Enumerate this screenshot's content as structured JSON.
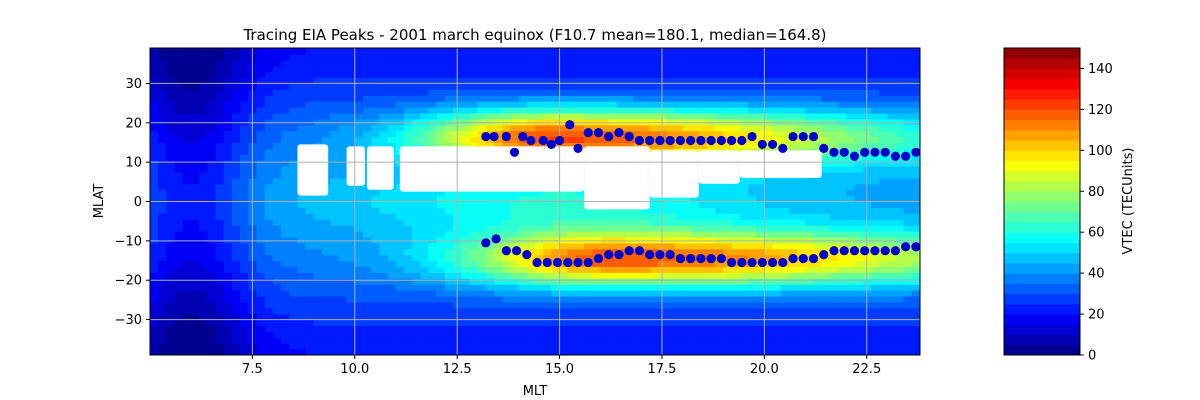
{
  "chart_data": {
    "type": "heatmap",
    "title": "Tracing EIA Peaks - 2001 march equinox (F10.7 mean=180.1, median=164.8)",
    "xlabel": "MLT",
    "ylabel": "MLAT",
    "xlim": [
      5.0,
      23.8
    ],
    "ylim": [
      -39,
      39
    ],
    "xticks": [
      7.5,
      10.0,
      12.5,
      15.0,
      17.5,
      20.0,
      22.5
    ],
    "xtick_labels": [
      "7.5",
      "10.0",
      "12.5",
      "15.0",
      "17.5",
      "20.0",
      "22.5"
    ],
    "yticks": [
      -30,
      -20,
      -10,
      0,
      10,
      20,
      30
    ],
    "ytick_labels": [
      "−30",
      "−20",
      "−10",
      "0",
      "10",
      "20",
      "30"
    ],
    "grid": true,
    "colorbar": {
      "label": "VTEC (TECUnits)",
      "colormap": "jet",
      "range": [
        0,
        150
      ],
      "ticks": [
        0,
        20,
        40,
        60,
        80,
        100,
        120,
        140
      ],
      "tick_labels": [
        "0",
        "20",
        "40",
        "60",
        "80",
        "100",
        "120",
        "140"
      ]
    },
    "peaks_series": [
      {
        "marker_color": "#0000cc",
        "points": [
          [
            13.2,
            16.5
          ],
          [
            13.4,
            16.5
          ],
          [
            13.7,
            16.5
          ],
          [
            13.9,
            12.5
          ],
          [
            14.1,
            16.5
          ],
          [
            14.3,
            15.5
          ],
          [
            14.6,
            15.5
          ],
          [
            14.8,
            14.5
          ],
          [
            15.0,
            15.5
          ],
          [
            15.25,
            19.5
          ],
          [
            15.45,
            13.5
          ],
          [
            15.7,
            17.5
          ],
          [
            15.95,
            17.5
          ],
          [
            16.2,
            16.5
          ],
          [
            16.45,
            17.5
          ],
          [
            16.7,
            16.5
          ],
          [
            16.95,
            15.5
          ],
          [
            17.2,
            15.5
          ],
          [
            17.45,
            15.5
          ],
          [
            17.7,
            15.5
          ],
          [
            17.95,
            15.5
          ],
          [
            18.2,
            15.5
          ],
          [
            18.45,
            15.5
          ],
          [
            18.7,
            15.5
          ],
          [
            18.95,
            15.5
          ],
          [
            19.2,
            15.5
          ],
          [
            19.45,
            15.5
          ],
          [
            19.7,
            16.5
          ],
          [
            19.95,
            14.5
          ],
          [
            20.2,
            14.5
          ],
          [
            20.45,
            13.5
          ],
          [
            20.7,
            16.5
          ],
          [
            20.95,
            16.5
          ],
          [
            21.2,
            16.5
          ],
          [
            21.45,
            13.5
          ],
          [
            21.7,
            12.5
          ],
          [
            21.95,
            12.5
          ],
          [
            22.2,
            11.5
          ],
          [
            22.45,
            12.5
          ],
          [
            22.7,
            12.5
          ],
          [
            22.95,
            12.5
          ],
          [
            23.2,
            11.5
          ],
          [
            23.45,
            11.5
          ],
          [
            23.7,
            12.5
          ],
          [
            23.95,
            12.5
          ]
        ]
      },
      {
        "marker_color": "#0000cc",
        "points": [
          [
            13.2,
            -10.5
          ],
          [
            13.45,
            -9.5
          ],
          [
            13.7,
            -12.5
          ],
          [
            13.95,
            -12.5
          ],
          [
            14.2,
            -13.5
          ],
          [
            14.45,
            -15.5
          ],
          [
            14.7,
            -15.5
          ],
          [
            14.95,
            -15.5
          ],
          [
            15.2,
            -15.5
          ],
          [
            15.45,
            -15.5
          ],
          [
            15.7,
            -15.5
          ],
          [
            15.95,
            -14.5
          ],
          [
            16.2,
            -13.5
          ],
          [
            16.45,
            -13.5
          ],
          [
            16.7,
            -12.5
          ],
          [
            16.95,
            -12.5
          ],
          [
            17.2,
            -13.5
          ],
          [
            17.45,
            -13.5
          ],
          [
            17.7,
            -13.5
          ],
          [
            17.95,
            -14.5
          ],
          [
            18.2,
            -14.5
          ],
          [
            18.45,
            -14.5
          ],
          [
            18.7,
            -14.5
          ],
          [
            18.95,
            -14.5
          ],
          [
            19.2,
            -15.5
          ],
          [
            19.45,
            -15.5
          ],
          [
            19.7,
            -15.5
          ],
          [
            19.95,
            -15.5
          ],
          [
            20.2,
            -15.5
          ],
          [
            20.45,
            -15.5
          ],
          [
            20.7,
            -14.5
          ],
          [
            20.95,
            -14.5
          ],
          [
            21.2,
            -14.5
          ],
          [
            21.45,
            -13.5
          ],
          [
            21.7,
            -12.5
          ],
          [
            21.95,
            -12.5
          ],
          [
            22.2,
            -12.5
          ],
          [
            22.45,
            -12.5
          ],
          [
            22.7,
            -12.5
          ],
          [
            22.95,
            -12.5
          ],
          [
            23.2,
            -12.5
          ],
          [
            23.45,
            -11.5
          ],
          [
            23.7,
            -11.5
          ],
          [
            23.95,
            -11.5
          ]
        ]
      }
    ],
    "field_model": {
      "description_units": "VTEC (TECUnits)",
      "base_level": 30,
      "crests": [
        {
          "mlat": 16.5,
          "mlt_peak": 14.8,
          "amplitude": 85,
          "mlt_width": 3.2,
          "lat_width": 7
        },
        {
          "mlat": -14.5,
          "mlt_peak": 16.3,
          "amplitude": 82,
          "mlt_width": 3.6,
          "lat_width": 7
        }
      ],
      "trough_mlt": 6.0
    },
    "missing_regions": [
      {
        "mlt": [
          8.6,
          9.35
        ],
        "mlat": [
          1.5,
          14.5
        ]
      },
      {
        "mlt": [
          9.8,
          10.25
        ],
        "mlat": [
          4.0,
          14.0
        ]
      },
      {
        "mlt": [
          10.3,
          10.95
        ],
        "mlat": [
          3.0,
          14.0
        ]
      },
      {
        "mlt": [
          11.1,
          15.6
        ],
        "mlat": [
          2.5,
          14.0
        ]
      },
      {
        "mlt": [
          15.6,
          17.2
        ],
        "mlat": [
          -2.0,
          14.0
        ]
      },
      {
        "mlt": [
          17.2,
          18.4
        ],
        "mlat": [
          1.0,
          13.0
        ]
      },
      {
        "mlt": [
          18.4,
          19.4
        ],
        "mlat": [
          4.5,
          13.0
        ]
      },
      {
        "mlt": [
          19.4,
          21.4
        ],
        "mlat": [
          6.0,
          13.0
        ]
      }
    ]
  }
}
